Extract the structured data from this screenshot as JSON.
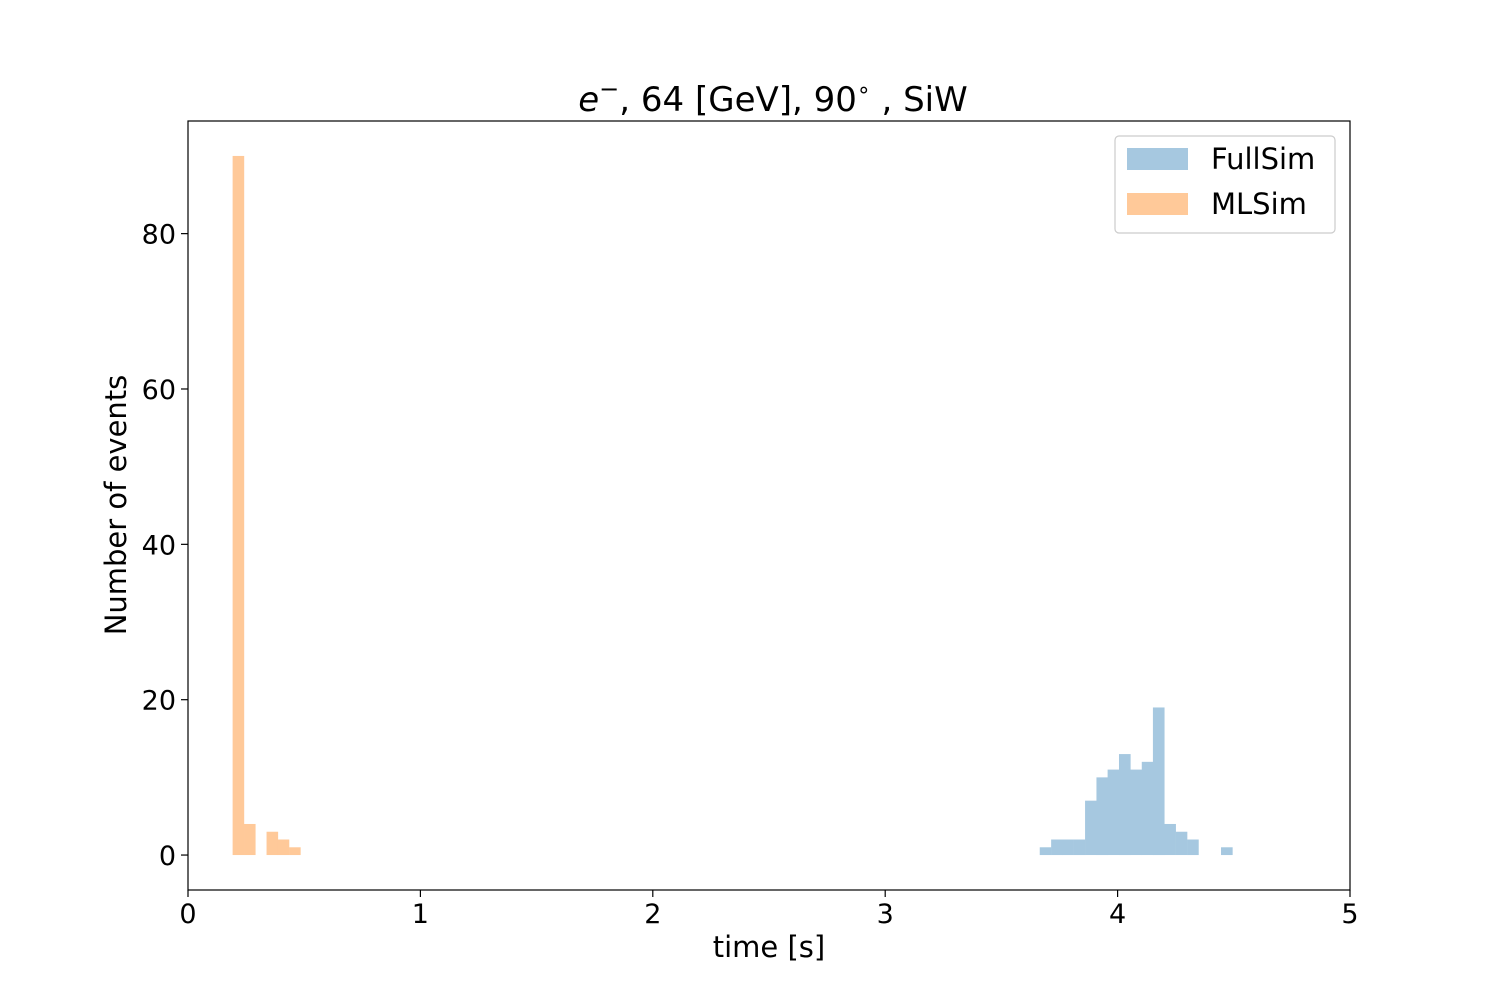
{
  "chart_data": {
    "type": "histogram",
    "title": {
      "particle": "e",
      "charge": "−",
      "rest": ", 64 [GeV], 90",
      "degree": "∘",
      "suffix": " , SiW"
    },
    "xlabel": "time [s]",
    "ylabel": "Number of events",
    "xlim": [
      0,
      5
    ],
    "ylim": [
      -4.5,
      94.5
    ],
    "xticks": [
      0,
      1,
      2,
      3,
      4,
      5
    ],
    "yticks": [
      0,
      20,
      40,
      60,
      80
    ],
    "grid": false,
    "legend_position": "top-right",
    "series": [
      {
        "name": "FullSim",
        "color": "#a6c8e0",
        "bin_width": 0.04875,
        "bins": [
          [
            3.665,
            1
          ],
          [
            3.714,
            2
          ],
          [
            3.762,
            2
          ],
          [
            3.811,
            2
          ],
          [
            3.86,
            7
          ],
          [
            3.909,
            10
          ],
          [
            3.957,
            11
          ],
          [
            4.006,
            13
          ],
          [
            4.055,
            11
          ],
          [
            4.104,
            12
          ],
          [
            4.152,
            19
          ],
          [
            4.201,
            4
          ],
          [
            4.25,
            3
          ],
          [
            4.299,
            2
          ],
          [
            4.347,
            0
          ],
          [
            4.396,
            0
          ],
          [
            4.445,
            1
          ]
        ]
      },
      {
        "name": "MLSim",
        "color": "#ffc999",
        "bin_width": 0.0485,
        "bins": [
          [
            0.192,
            90
          ],
          [
            0.241,
            4
          ],
          [
            0.289,
            0
          ],
          [
            0.338,
            3
          ],
          [
            0.386,
            2
          ],
          [
            0.435,
            1
          ]
        ]
      }
    ]
  }
}
